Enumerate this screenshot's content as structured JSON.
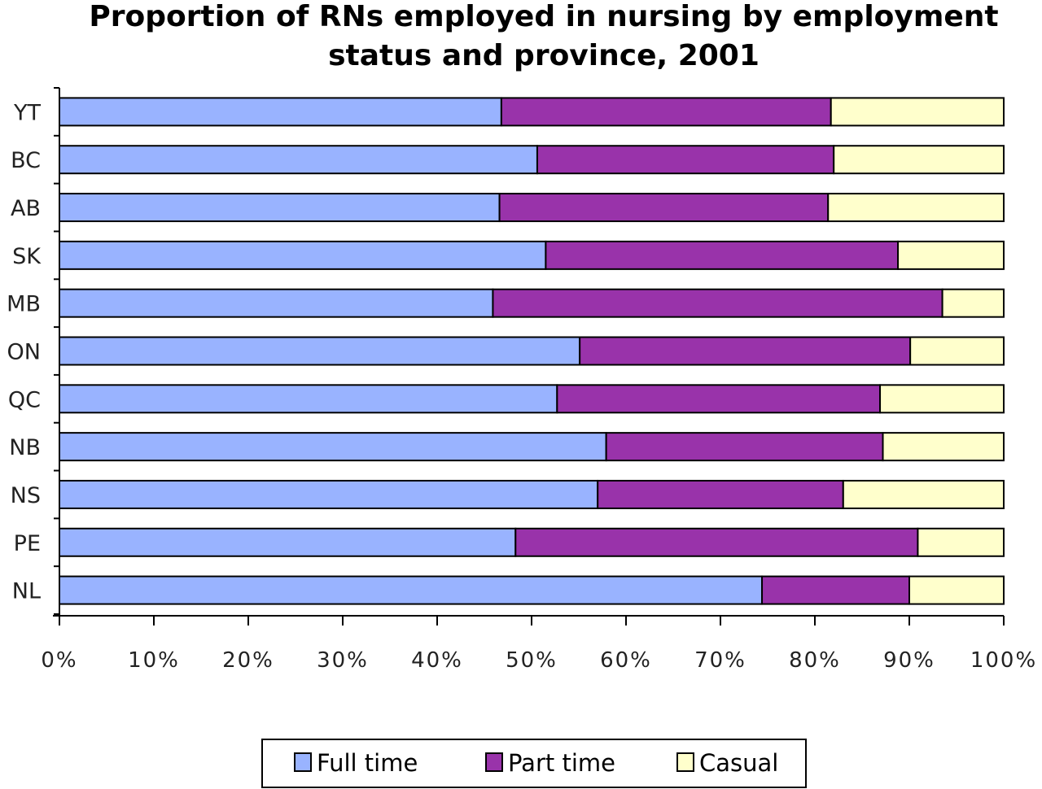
{
  "chart_data": {
    "type": "bar",
    "orientation": "horizontal",
    "stacked": true,
    "title": "Proportion of RNs employed in nursing by employment status and province, 2001",
    "title_lines": [
      "Proportion of RNs employed in nursing by employment",
      "status and province, 2001"
    ],
    "xlabel": "",
    "ylabel": "",
    "xlim": [
      0,
      100
    ],
    "x_ticks": [
      "0%",
      "10%",
      "20%",
      "30%",
      "40%",
      "50%",
      "60%",
      "70%",
      "80%",
      "90%",
      "100%"
    ],
    "legend_position": "bottom",
    "categories": [
      "YT",
      "BC",
      "AB",
      "SK",
      "MB",
      "ON",
      "QC",
      "NB",
      "NS",
      "PE",
      "NL"
    ],
    "series": [
      {
        "name": "Full time",
        "color": "#99b3ff",
        "values": [
          46.8,
          50.6,
          46.6,
          51.5,
          45.9,
          55.1,
          52.7,
          57.9,
          57.0,
          48.3,
          74.4
        ]
      },
      {
        "name": "Part time",
        "color": "#9933aa",
        "values": [
          34.9,
          31.4,
          34.8,
          37.3,
          47.6,
          35.0,
          34.2,
          29.3,
          26.0,
          42.6,
          15.6
        ]
      },
      {
        "name": "Casual",
        "color": "#ffffcc",
        "values": [
          18.3,
          18.0,
          18.6,
          11.2,
          6.5,
          9.9,
          13.1,
          12.8,
          17.0,
          9.1,
          10.0
        ]
      }
    ]
  }
}
